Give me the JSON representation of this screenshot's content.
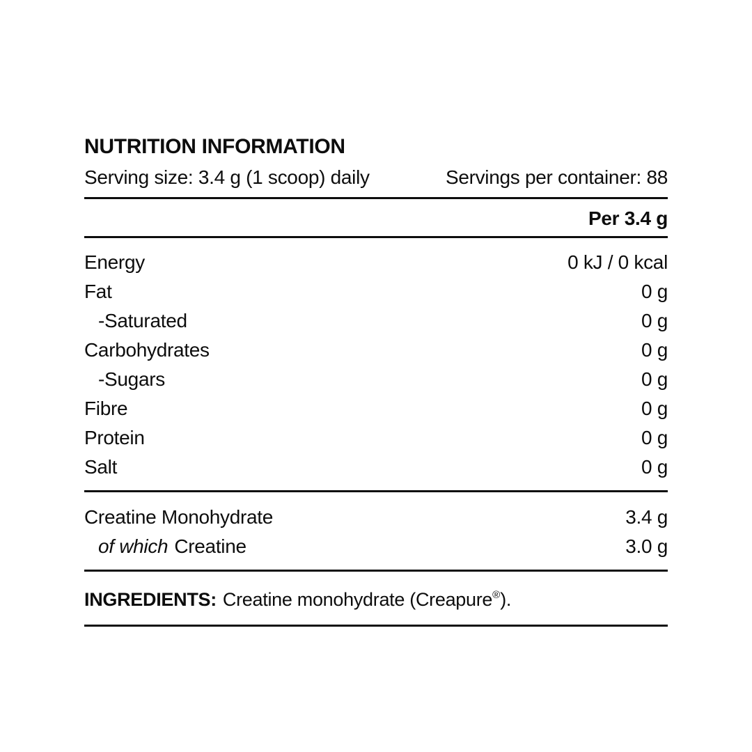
{
  "label": {
    "title": "NUTRITION INFORMATION",
    "serving_size": "Serving size: 3.4 g (1 scoop) daily",
    "servings_per_container": "Servings per container: 88",
    "column_header": "Per 3.4 g",
    "nutrients": [
      {
        "name": "Energy",
        "value": "0 kJ / 0 kcal"
      },
      {
        "name": "Fat",
        "value": "0 g"
      },
      {
        "name": "-Saturated",
        "value": "0 g"
      },
      {
        "name": "Carbohydrates",
        "value": "0 g"
      },
      {
        "name": "-Sugars",
        "value": "0 g"
      },
      {
        "name": "Fibre",
        "value": "0 g"
      },
      {
        "name": "Protein",
        "value": "0 g"
      },
      {
        "name": "Salt",
        "value": "0 g"
      }
    ],
    "actives": [
      {
        "name": "Creatine Monohydrate",
        "value": "3.4 g"
      },
      {
        "prefix_italic": "of which",
        "name": "Creatine",
        "value": "3.0 g"
      }
    ],
    "ingredients": {
      "label": "INGREDIENTS:",
      "text_before_reg": "Creatine monohydrate (Creapure",
      "registered_mark": "®",
      "text_after_reg": ")."
    },
    "colors": {
      "text": "#0d0d0d",
      "background": "#ffffff",
      "rule": "#0d0d0d"
    }
  }
}
